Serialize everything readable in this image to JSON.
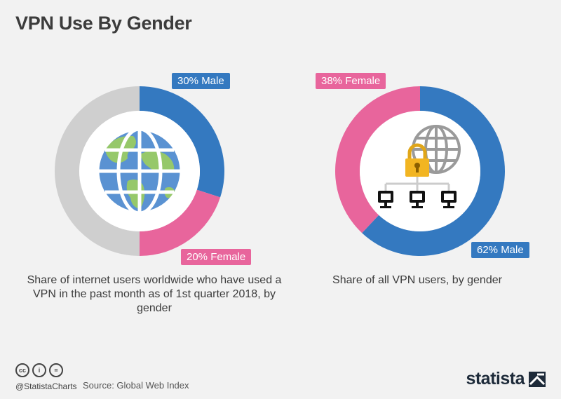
{
  "title": "VPN Use By Gender",
  "colors": {
    "male": "#3479c0",
    "female": "#e8659c",
    "other": "#cfcfcf"
  },
  "chart_data": [
    {
      "type": "pie",
      "caption": "Share of internet users worldwide who have used a VPN in the past month as of 1st quarter 2018, by gender",
      "slices": [
        {
          "label": "30% Male",
          "value": 30,
          "color": "#3479c0"
        },
        {
          "label": "20% Female",
          "value": 20,
          "color": "#e8659c"
        },
        {
          "label": "",
          "value": 50,
          "color": "#cfcfcf"
        }
      ]
    },
    {
      "type": "pie",
      "caption": "Share of all VPN users, by gender",
      "slices": [
        {
          "label": "62% Male",
          "value": 62,
          "color": "#3479c0"
        },
        {
          "label": "38% Female",
          "value": 38,
          "color": "#e8659c"
        }
      ]
    }
  ],
  "footer": {
    "cc_icons": [
      "cc-icon",
      "by-icon",
      "nd-icon"
    ],
    "cc_texts": [
      "cc",
      "i",
      "="
    ],
    "handle": "@StatistaCharts",
    "source": "Source: Global Web Index",
    "brand": "statista"
  }
}
